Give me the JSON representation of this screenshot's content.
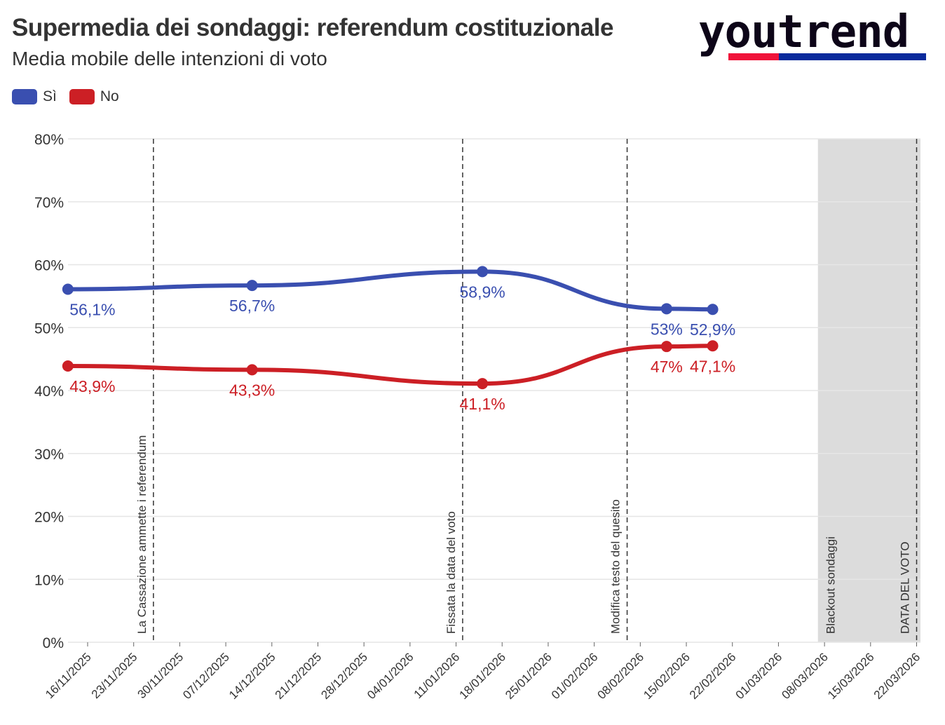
{
  "header": {
    "title": "Supermedia dei sondaggi: referendum costituzionale",
    "subtitle": "Media mobile delle intenzioni di voto",
    "logo": "youtrend"
  },
  "chart_data": {
    "type": "line",
    "title": "Supermedia dei sondaggi: referendum costituzionale",
    "subtitle": "Media mobile delle intenzioni di voto",
    "xlabel": "",
    "ylabel": "",
    "ylim": [
      0,
      80
    ],
    "yticks": [
      "0%",
      "10%",
      "20%",
      "30%",
      "40%",
      "50%",
      "60%",
      "70%",
      "80%"
    ],
    "ytick_values": [
      0,
      10,
      20,
      30,
      40,
      50,
      60,
      70,
      80
    ],
    "xticks": [
      "16/11/2025",
      "23/11/2025",
      "30/11/2025",
      "07/12/2025",
      "14/12/2025",
      "21/12/2025",
      "28/12/2025",
      "04/01/2026",
      "11/01/2026",
      "18/01/2026",
      "25/01/2026",
      "01/02/2026",
      "08/02/2026",
      "15/02/2026",
      "22/02/2026",
      "01/03/2026",
      "08/03/2026",
      "15/03/2026",
      "22/03/2026"
    ],
    "x_day_offsets_from_first_tick": [
      -3,
      25,
      60,
      88,
      95
    ],
    "x": [
      "13/11/2025",
      "11/12/2025",
      "15/01/2026",
      "12/02/2026",
      "19/02/2026"
    ],
    "series": [
      {
        "name": "Sì",
        "color": "#3a4fb0",
        "values": [
          56.1,
          56.7,
          58.9,
          53.0,
          52.9
        ],
        "labels": [
          "56,1%",
          "56,7%",
          "58,9%",
          "53%",
          "52,9%"
        ]
      },
      {
        "name": "No",
        "color": "#cc1f25",
        "values": [
          43.9,
          43.3,
          41.1,
          47.0,
          47.1
        ],
        "labels": [
          "43,9%",
          "43,3%",
          "41,1%",
          "47%",
          "47,1%"
        ]
      }
    ],
    "legend": "top-left",
    "grid": true,
    "annotations": [
      {
        "day": 10,
        "text": "La Cassazione ammette i referendum"
      },
      {
        "day": 57,
        "text": "Fissata la data del voto"
      },
      {
        "day": 82,
        "text": "Modifica testo del quesito"
      },
      {
        "day": 126,
        "text": "DATA DEL VOTO"
      }
    ],
    "shaded_region": {
      "from_day": 111,
      "to_day": 127,
      "text": "Blackout sondaggi",
      "color": "#dcdcdc"
    }
  }
}
